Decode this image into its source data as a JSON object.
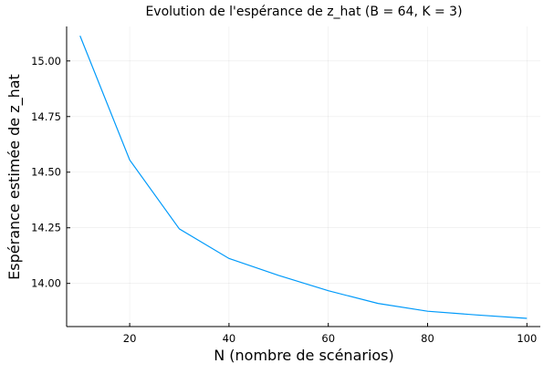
{
  "chart_data": {
    "type": "line",
    "title": "Evolution de l'espérance de z_hat (B = 64, K = 3)",
    "xlabel": "N (nombre de scénarios)",
    "ylabel": "Espérance estimée de z_hat",
    "xlim": [
      7.3,
      102.7
    ],
    "ylim": [
      13.806,
      15.155
    ],
    "xticks": [
      20,
      40,
      60,
      80,
      100
    ],
    "xtick_labels": [
      "20",
      "40",
      "60",
      "80",
      "100"
    ],
    "yticks": [
      14.0,
      14.25,
      14.5,
      14.75,
      15.0
    ],
    "ytick_labels": [
      "14.00",
      "14.25",
      "14.50",
      "14.75",
      "15.00"
    ],
    "grid": true,
    "legend": "none",
    "series": [
      {
        "color": "#009AFA",
        "x": [
          10,
          20,
          30,
          40,
          50,
          60,
          70,
          80,
          90,
          100
        ],
        "y": [
          15.113,
          14.555,
          14.245,
          14.112,
          14.036,
          13.967,
          13.91,
          13.875,
          13.858,
          13.843
        ]
      }
    ]
  }
}
